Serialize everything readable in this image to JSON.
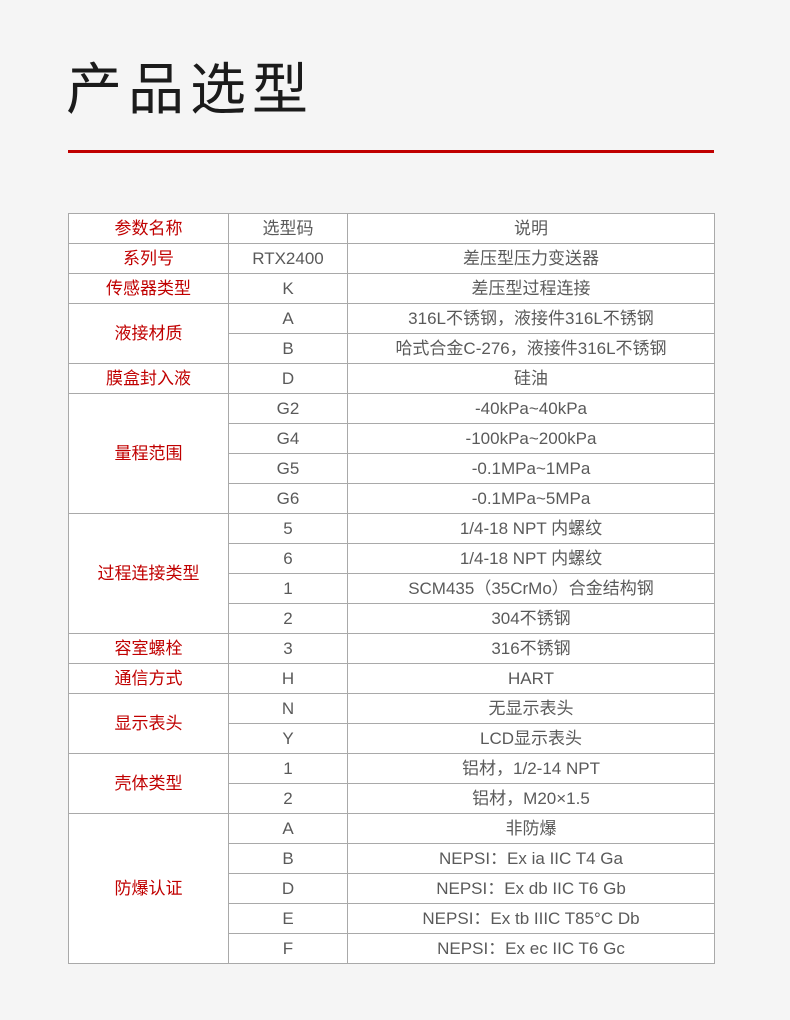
{
  "page": {
    "title": "产品选型",
    "accent_color": "#c00000",
    "background_color": "#f5f5f5",
    "border_color": "#a9a9a9",
    "text_color": "#5a5a5a"
  },
  "table": {
    "headers": {
      "param": "参数名称",
      "code": "选型码",
      "desc": "说明"
    },
    "rows": [
      {
        "param": "系列号",
        "code": "RTX2400",
        "desc": "差压型压力变送器"
      },
      {
        "param": "传感器类型",
        "code": "K",
        "desc": "差压型过程连接"
      },
      {
        "param": "液接材质",
        "code": "A",
        "desc": "316L不锈钢，液接件316L不锈钢"
      },
      {
        "code": "B",
        "desc": "哈式合金C-276，液接件316L不锈钢"
      },
      {
        "param": "膜盒封入液",
        "code": "D",
        "desc": "硅油"
      },
      {
        "param": "量程范围",
        "code": "G2",
        "desc": "-40kPa~40kPa"
      },
      {
        "code": "G4",
        "desc": "-100kPa~200kPa"
      },
      {
        "code": "G5",
        "desc": "-0.1MPa~1MPa"
      },
      {
        "code": "G6",
        "desc": "-0.1MPa~5MPa"
      },
      {
        "param": "过程连接类型",
        "code": "5",
        "desc": "1/4-18 NPT 内螺纹"
      },
      {
        "code": "6",
        "desc": "1/4-18 NPT 内螺纹"
      },
      {
        "code": "1",
        "desc": "SCM435（35CrMo）合金结构钢"
      },
      {
        "code": "2",
        "desc": "304不锈钢"
      },
      {
        "param": "容室螺栓",
        "code": "3",
        "desc": "316不锈钢"
      },
      {
        "param": "通信方式",
        "code": "H",
        "desc": "HART"
      },
      {
        "param": "显示表头",
        "code": "N",
        "desc": "无显示表头"
      },
      {
        "code": "Y",
        "desc": "LCD显示表头"
      },
      {
        "param": "壳体类型",
        "code": "1",
        "desc": "铝材，1/2-14 NPT"
      },
      {
        "code": "2",
        "desc": "铝材，M20×1.5"
      },
      {
        "param": "防爆认证",
        "code": "A",
        "desc": "非防爆"
      },
      {
        "code": "B",
        "desc": "NEPSI：Ex ia IIC T4 Ga"
      },
      {
        "code": "D",
        "desc": "NEPSI：Ex db IIC T6 Gb"
      },
      {
        "code": "E",
        "desc": "NEPSI：Ex tb IIIC T85°C Db"
      },
      {
        "code": "F",
        "desc": "NEPSI：Ex ec IIC T6 Gc"
      }
    ]
  }
}
